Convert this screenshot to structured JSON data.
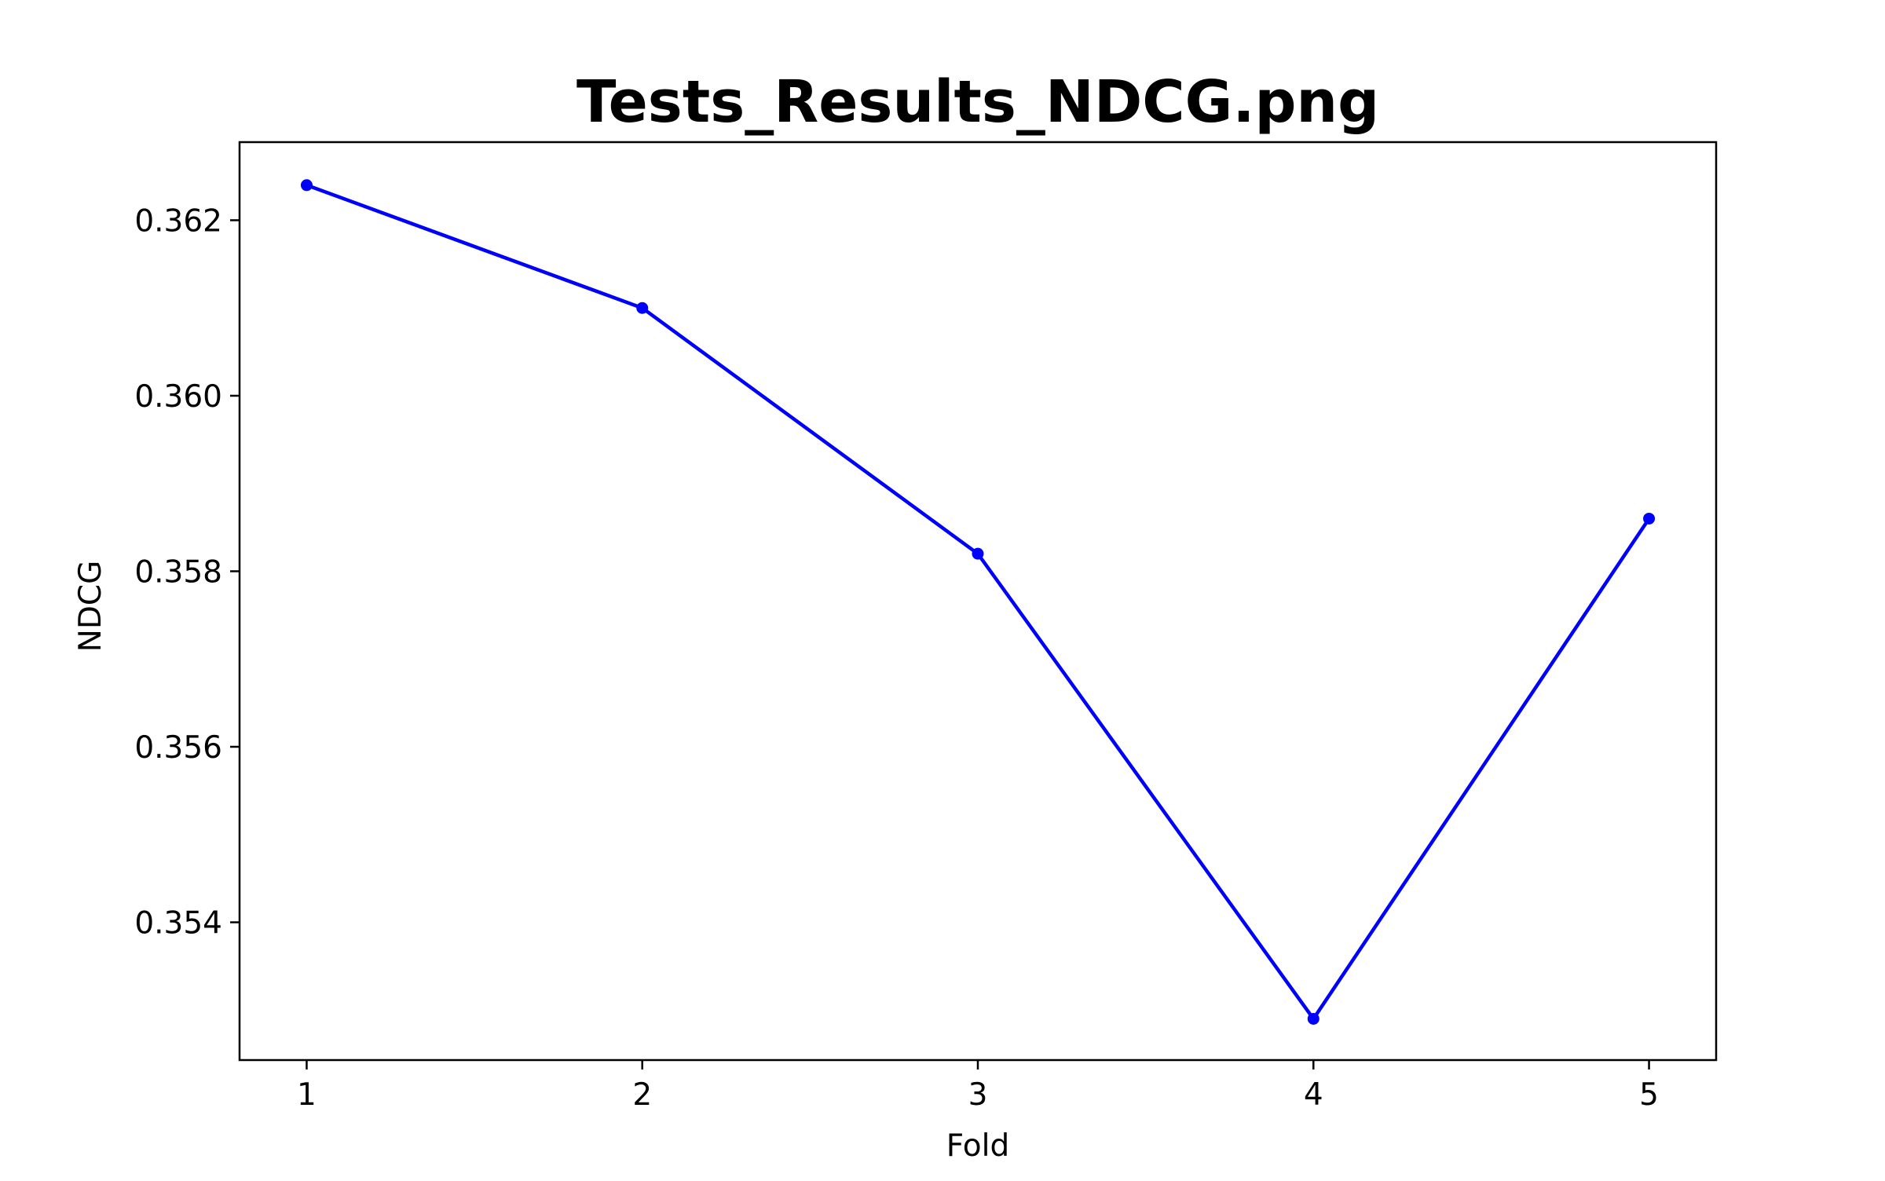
{
  "chart_data": {
    "type": "line",
    "title": "Tests_Results_NDCG.png",
    "xlabel": "Fold",
    "ylabel": "NDCG",
    "x": [
      1,
      2,
      3,
      4,
      5
    ],
    "series": [
      {
        "values": [
          0.3624,
          0.361,
          0.3582,
          0.3529,
          0.3586
        ],
        "color": "#0000ff",
        "marker": "circle"
      }
    ],
    "x_ticks": [
      "1",
      "2",
      "3",
      "4",
      "5"
    ],
    "y_ticks": [
      0.354,
      0.356,
      0.358,
      0.36,
      0.362
    ],
    "y_tick_labels": [
      "0.354",
      "0.356",
      "0.358",
      "0.360",
      "0.362"
    ],
    "xlim": [
      0.8,
      5.2
    ],
    "ylim": [
      0.35243,
      0.36289
    ],
    "grid": false,
    "legend": "none"
  }
}
